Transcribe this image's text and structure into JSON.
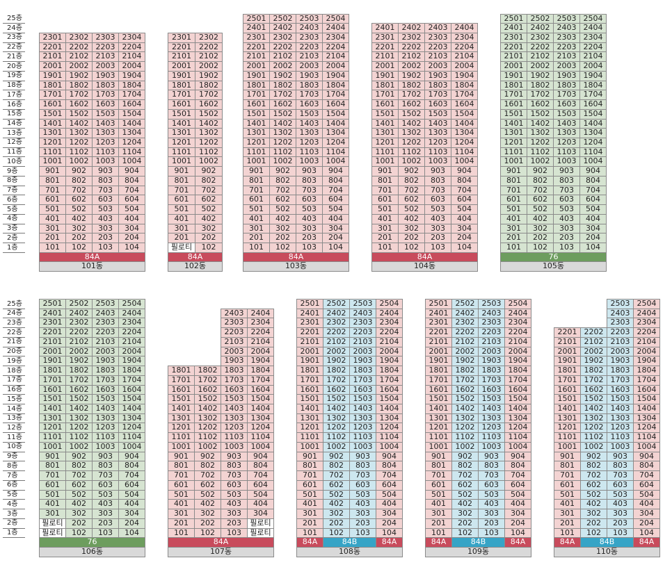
{
  "floor_labels": [
    "25층",
    "24층",
    "23층",
    "22층",
    "21층",
    "20층",
    "19층",
    "18층",
    "17층",
    "16층",
    "15층",
    "14층",
    "13층",
    "12층",
    "11층",
    "10층",
    "9층",
    "8층",
    "7층",
    "6층",
    "5층",
    "4층",
    "3층",
    "2층",
    "1층"
  ],
  "pilotis_label": "필로티",
  "colors": {
    "pink": "#f3d3d2",
    "green": "#d6e4d1",
    "blue": "#cde7ef",
    "type_red": "#c84b5c",
    "type_green": "#6d9d5e",
    "type_blue": "#36a4c6",
    "name_gray": "#d9d9d9"
  },
  "buildings": [
    {
      "id": "101",
      "name": "101동",
      "row": 0,
      "top_floor": 23,
      "lines": [
        1,
        2,
        3,
        4
      ],
      "pilotis": [],
      "color": "p",
      "types": [
        {
          "label": "84A",
          "from": 0,
          "to": 4,
          "color": "r"
        }
      ]
    },
    {
      "id": "102",
      "name": "102동",
      "row": 0,
      "top_floor": 23,
      "lines": [
        1,
        2
      ],
      "pilotis": [
        [
          1,
          1
        ]
      ],
      "color": "p",
      "types": [
        {
          "label": "84A",
          "from": 0,
          "to": 2,
          "color": "r"
        }
      ]
    },
    {
      "id": "103",
      "name": "103동",
      "row": 0,
      "top_floor": 25,
      "lines": [
        1,
        2,
        3,
        4
      ],
      "pilotis": [],
      "color": "p",
      "types": [
        {
          "label": "84A",
          "from": 0,
          "to": 4,
          "color": "r"
        }
      ]
    },
    {
      "id": "104",
      "name": "104동",
      "row": 0,
      "top_floor": 24,
      "lines": [
        1,
        2,
        3,
        4
      ],
      "pilotis": [],
      "color": "p",
      "types": [
        {
          "label": "84A",
          "from": 0,
          "to": 4,
          "color": "r"
        }
      ]
    },
    {
      "id": "105",
      "name": "105동",
      "row": 0,
      "top_floor": 25,
      "lines": [
        1,
        2,
        3,
        4
      ],
      "pilotis": [],
      "color": "g",
      "types": [
        {
          "label": "76",
          "from": 0,
          "to": 4,
          "color": "g"
        }
      ]
    },
    {
      "id": "106",
      "name": "106동",
      "row": 1,
      "top_floor": 25,
      "lines": [
        1,
        2,
        3,
        4
      ],
      "pilotis": [
        [
          1,
          1
        ],
        [
          2,
          1
        ]
      ],
      "color": "g",
      "types": [
        {
          "label": "76",
          "from": 0,
          "to": 4,
          "color": "g"
        }
      ]
    },
    {
      "id": "107",
      "name": "107동",
      "row": 1,
      "top_floor": 24,
      "lines": [
        1,
        2,
        3,
        4
      ],
      "pilotis": [
        [
          1,
          4
        ],
        [
          2,
          4
        ]
      ],
      "color": "p",
      "col_tops": [
        18,
        18,
        24,
        24
      ],
      "types": [
        {
          "label": "84A",
          "from": 0,
          "to": 4,
          "color": "r"
        }
      ]
    },
    {
      "id": "108",
      "name": "108동",
      "row": 1,
      "top_floor": 25,
      "lines": [
        1,
        2,
        3,
        4
      ],
      "pilotis": [],
      "color": "p",
      "col_colors": [
        "p",
        "b",
        "b",
        "p"
      ],
      "types": [
        {
          "label": "84A",
          "from": 0,
          "to": 1,
          "color": "r"
        },
        {
          "label": "84B",
          "from": 1,
          "to": 3,
          "color": "b"
        },
        {
          "label": "84A",
          "from": 3,
          "to": 4,
          "color": "r"
        }
      ]
    },
    {
      "id": "109",
      "name": "109동",
      "row": 1,
      "top_floor": 25,
      "lines": [
        1,
        2,
        3,
        4
      ],
      "pilotis": [],
      "color": "p",
      "col_colors": [
        "p",
        "b",
        "b",
        "p"
      ],
      "types": [
        {
          "label": "84A",
          "from": 0,
          "to": 1,
          "color": "r"
        },
        {
          "label": "84B",
          "from": 1,
          "to": 3,
          "color": "b"
        },
        {
          "label": "84A",
          "from": 3,
          "to": 4,
          "color": "r"
        }
      ]
    },
    {
      "id": "110",
      "name": "110동",
      "row": 1,
      "top_floor": 25,
      "lines": [
        1,
        2,
        3,
        4
      ],
      "pilotis": [],
      "color": "p",
      "col_colors": [
        "p",
        "b",
        "b",
        "p"
      ],
      "col_tops": [
        22,
        22,
        25,
        25
      ],
      "types": [
        {
          "label": "84A",
          "from": 0,
          "to": 1,
          "color": "r"
        },
        {
          "label": "84B",
          "from": 1,
          "to": 3,
          "color": "b"
        },
        {
          "label": "84A",
          "from": 3,
          "to": 4,
          "color": "r"
        }
      ]
    }
  ]
}
